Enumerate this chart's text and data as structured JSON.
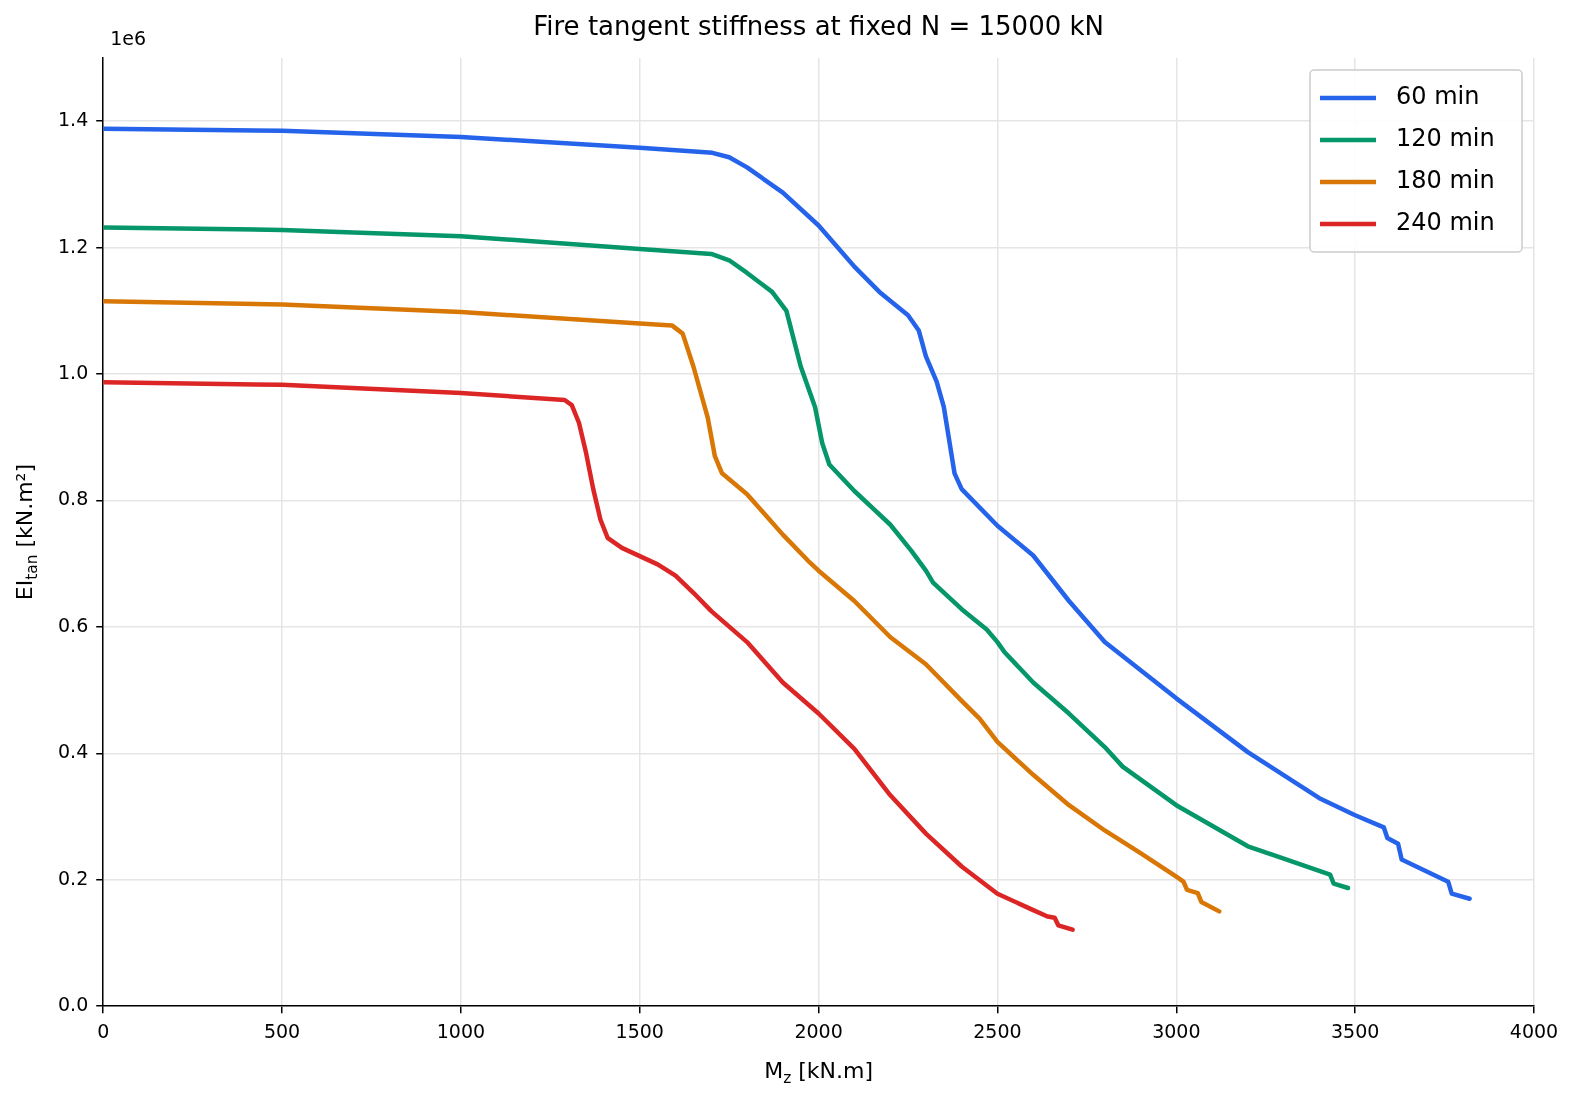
{
  "chart_data": {
    "type": "line",
    "title": "Fire tangent stiffness at fixed N = 15000 kN",
    "xlabel": "M$_{z}$ [kN.m]",
    "ylabel": "EI$_{tan}$ [kN.m²]",
    "annotations": [
      "1e6"
    ],
    "xlim": [
      0,
      4000
    ],
    "xticks": [
      0,
      500,
      1000,
      1500,
      2000,
      2500,
      3000,
      3500,
      4000
    ],
    "ylim": [
      0,
      1.5
    ],
    "yticks": [
      {
        "value": 0,
        "label": "0.0"
      },
      0.2,
      0.4,
      0.6,
      0.8,
      {
        "value": 1,
        "label": "1.0"
      },
      1.2,
      1.4
    ],
    "grid": true,
    "legend": "top right",
    "marker": "none",
    "line_style": "solid",
    "series": [
      {
        "name": "60 min",
        "color": "#2563eb",
        "x": [
          0,
          500,
          1000,
          1500,
          1703,
          1750,
          1800,
          1900,
          2000,
          2100,
          2170,
          2250,
          2280,
          2300,
          2330,
          2350,
          2380,
          2400,
          2500,
          2600,
          2700,
          2800,
          3000,
          3200,
          3400,
          3500,
          3580,
          3590,
          3620,
          3630,
          3700,
          3760,
          3770,
          3820
        ],
        "values": [
          1.388,
          1.385,
          1.375,
          1.358,
          1.35,
          1.343,
          1.327,
          1.287,
          1.235,
          1.17,
          1.13,
          1.093,
          1.069,
          1.028,
          0.988,
          0.948,
          0.843,
          0.818,
          0.76,
          0.713,
          0.641,
          0.576,
          0.487,
          0.402,
          0.329,
          0.302,
          0.283,
          0.266,
          0.257,
          0.232,
          0.213,
          0.197,
          0.178,
          0.17
        ]
      },
      {
        "name": "120 min",
        "color": "#059669",
        "x": [
          0,
          500,
          1000,
          1500,
          1700,
          1750,
          1800,
          1870,
          1910,
          1950,
          1990,
          2010,
          2030,
          2100,
          2200,
          2260,
          2300,
          2320,
          2400,
          2470,
          2500,
          2520,
          2600,
          2700,
          2800,
          2850,
          3000,
          3200,
          3430,
          3440,
          3480
        ],
        "values": [
          1.232,
          1.228,
          1.218,
          1.198,
          1.19,
          1.18,
          1.16,
          1.13,
          1.1,
          1.012,
          0.948,
          0.891,
          0.857,
          0.815,
          0.762,
          0.72,
          0.689,
          0.67,
          0.628,
          0.596,
          0.576,
          0.56,
          0.512,
          0.463,
          0.41,
          0.379,
          0.318,
          0.253,
          0.208,
          0.194,
          0.187
        ]
      },
      {
        "name": "180 min",
        "color": "#d97706",
        "x": [
          0,
          500,
          1000,
          1500,
          1590,
          1620,
          1650,
          1690,
          1710,
          1730,
          1800,
          1900,
          1970,
          2000,
          2100,
          2200,
          2300,
          2400,
          2450,
          2500,
          2600,
          2700,
          2800,
          2900,
          3000,
          3020,
          3030,
          3060,
          3070,
          3120
        ],
        "values": [
          1.115,
          1.11,
          1.098,
          1.08,
          1.077,
          1.064,
          1.012,
          0.931,
          0.87,
          0.843,
          0.81,
          0.746,
          0.705,
          0.689,
          0.641,
          0.584,
          0.541,
          0.483,
          0.455,
          0.418,
          0.366,
          0.318,
          0.278,
          0.242,
          0.205,
          0.197,
          0.184,
          0.179,
          0.165,
          0.15
        ]
      },
      {
        "name": "240 min",
        "color": "#dc2626",
        "x": [
          0,
          500,
          1000,
          1290,
          1310,
          1330,
          1350,
          1370,
          1390,
          1410,
          1450,
          1500,
          1550,
          1600,
          1650,
          1700,
          1800,
          1850,
          1900,
          2000,
          2100,
          2200,
          2300,
          2400,
          2500,
          2600,
          2640,
          2660,
          2670,
          2710
        ],
        "values": [
          0.987,
          0.983,
          0.97,
          0.959,
          0.951,
          0.923,
          0.875,
          0.818,
          0.77,
          0.741,
          0.725,
          0.712,
          0.699,
          0.681,
          0.654,
          0.625,
          0.576,
          0.544,
          0.512,
          0.463,
          0.407,
          0.334,
          0.273,
          0.221,
          0.178,
          0.152,
          0.142,
          0.14,
          0.128,
          0.121
        ]
      }
    ]
  }
}
